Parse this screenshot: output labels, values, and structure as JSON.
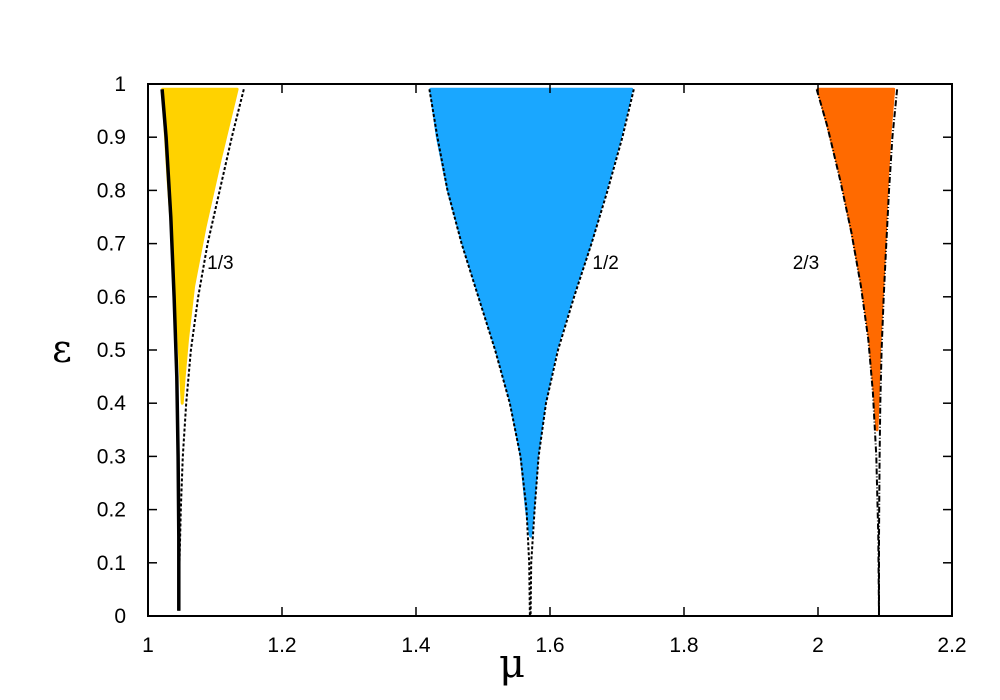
{
  "chart_data": {
    "type": "area",
    "title": "",
    "xlabel": "μ",
    "ylabel": "ε",
    "xlim": [
      1.0,
      2.2
    ],
    "ylim": [
      0,
      1
    ],
    "grid": false,
    "legend": "none",
    "x_ticks": [
      {
        "value": 1.0,
        "label": "1"
      },
      {
        "value": 1.2,
        "label": "1.2"
      },
      {
        "value": 1.4,
        "label": "1.4"
      },
      {
        "value": 1.6,
        "label": "1.6"
      },
      {
        "value": 1.8,
        "label": "1.8"
      },
      {
        "value": 2.0,
        "label": "2"
      },
      {
        "value": 2.2,
        "label": "2.2"
      }
    ],
    "y_ticks": [
      {
        "value": 0,
        "label": "0"
      },
      {
        "value": 0.1,
        "label": "0.1"
      },
      {
        "value": 0.2,
        "label": "0.2"
      },
      {
        "value": 0.3,
        "label": "0.3"
      },
      {
        "value": 0.4,
        "label": "0.4"
      },
      {
        "value": 0.5,
        "label": "0.5"
      },
      {
        "value": 0.6,
        "label": "0.6"
      },
      {
        "value": 0.7,
        "label": "0.7"
      },
      {
        "value": 0.8,
        "label": "0.8"
      },
      {
        "value": 0.9,
        "label": "0.9"
      },
      {
        "value": 1.0,
        "label": "1"
      }
    ],
    "regions": [
      {
        "name": "1/3",
        "color": "#FFD200",
        "label_pos": {
          "x": 1.108,
          "y": 0.665
        },
        "fill": [
          [
            1.022,
            0.99
          ],
          [
            1.133,
            0.99
          ],
          [
            1.108,
            0.86
          ],
          [
            1.085,
            0.73
          ],
          [
            1.068,
            0.62
          ],
          [
            1.059,
            0.52
          ],
          [
            1.054,
            0.45
          ],
          [
            1.051,
            0.4
          ],
          [
            1.046,
            0.52
          ],
          [
            1.039,
            0.66
          ],
          [
            1.03,
            0.82
          ]
        ],
        "boundaries": [
          {
            "style": "solid",
            "points": [
              [
                1.021,
                0.99
              ],
              [
                1.027,
                0.9
              ],
              [
                1.034,
                0.75
              ],
              [
                1.039,
                0.6
              ],
              [
                1.043,
                0.45
              ],
              [
                1.045,
                0.3
              ],
              [
                1.046,
                0.15
              ],
              [
                1.046,
                0.01
              ]
            ]
          },
          {
            "style": "dashed",
            "points": [
              [
                1.143,
                0.99
              ],
              [
                1.125,
                0.9
              ],
              [
                1.107,
                0.8
              ],
              [
                1.089,
                0.7
              ],
              [
                1.075,
                0.6
              ],
              [
                1.064,
                0.5
              ],
              [
                1.057,
                0.4
              ],
              [
                1.052,
                0.3
              ],
              [
                1.049,
                0.2
              ],
              [
                1.047,
                0.1
              ],
              [
                1.046,
                0.01
              ]
            ]
          }
        ]
      },
      {
        "name": "1/2",
        "color": "#1AA7FF",
        "label_pos": {
          "x": 1.683,
          "y": 0.665
        },
        "fill": [
          [
            1.422,
            0.99
          ],
          [
            1.722,
            0.99
          ],
          [
            1.705,
            0.9
          ],
          [
            1.683,
            0.8
          ],
          [
            1.66,
            0.7
          ],
          [
            1.633,
            0.6
          ],
          [
            1.609,
            0.5
          ],
          [
            1.592,
            0.4
          ],
          [
            1.581,
            0.3
          ],
          [
            1.575,
            0.2
          ],
          [
            1.571,
            0.15
          ],
          [
            1.565,
            0.2
          ],
          [
            1.557,
            0.3
          ],
          [
            1.542,
            0.4
          ],
          [
            1.52,
            0.5
          ],
          [
            1.495,
            0.6
          ],
          [
            1.47,
            0.7
          ],
          [
            1.448,
            0.8
          ],
          [
            1.432,
            0.9
          ]
        ],
        "boundaries": [
          {
            "style": "dashed",
            "points": [
              [
                1.42,
                0.99
              ],
              [
                1.432,
                0.9
              ],
              [
                1.447,
                0.8
              ],
              [
                1.468,
                0.7
              ],
              [
                1.493,
                0.6
              ],
              [
                1.518,
                0.5
              ],
              [
                1.54,
                0.4
              ],
              [
                1.556,
                0.3
              ],
              [
                1.565,
                0.2
              ],
              [
                1.569,
                0.1
              ],
              [
                1.57,
                0.0
              ]
            ]
          },
          {
            "style": "dashed",
            "points": [
              [
                1.725,
                0.99
              ],
              [
                1.708,
                0.9
              ],
              [
                1.686,
                0.8
              ],
              [
                1.662,
                0.7
              ],
              [
                1.636,
                0.6
              ],
              [
                1.612,
                0.5
              ],
              [
                1.594,
                0.4
              ],
              [
                1.583,
                0.3
              ],
              [
                1.577,
                0.2
              ],
              [
                1.572,
                0.1
              ],
              [
                1.571,
                0.0
              ]
            ]
          }
        ]
      },
      {
        "name": "2/3",
        "color": "#FF6A00",
        "label_pos": {
          "x": 1.982,
          "y": 0.665
        },
        "fill": [
          [
            2.0,
            0.99
          ],
          [
            2.113,
            0.99
          ],
          [
            2.107,
            0.9
          ],
          [
            2.103,
            0.8
          ],
          [
            2.1,
            0.7
          ],
          [
            2.096,
            0.6
          ],
          [
            2.092,
            0.5
          ],
          [
            2.09,
            0.42
          ],
          [
            2.088,
            0.35
          ],
          [
            2.084,
            0.42
          ],
          [
            2.077,
            0.52
          ],
          [
            2.066,
            0.62
          ],
          [
            2.051,
            0.72
          ],
          [
            2.035,
            0.82
          ],
          [
            2.015,
            0.92
          ]
        ],
        "boundaries": [
          {
            "style": "dashdot",
            "points": [
              [
                1.998,
                0.99
              ],
              [
                2.014,
                0.92
              ],
              [
                2.033,
                0.82
              ],
              [
                2.05,
                0.72
              ],
              [
                2.064,
                0.62
              ],
              [
                2.075,
                0.52
              ],
              [
                2.082,
                0.42
              ],
              [
                2.087,
                0.3
              ],
              [
                2.09,
                0.15
              ],
              [
                2.091,
                0.0
              ]
            ]
          },
          {
            "style": "dashdot",
            "points": [
              [
                2.118,
                0.99
              ],
              [
                2.111,
                0.9
              ],
              [
                2.106,
                0.8
              ],
              [
                2.102,
                0.7
              ],
              [
                2.098,
                0.6
              ],
              [
                2.095,
                0.5
              ],
              [
                2.093,
                0.4
              ],
              [
                2.092,
                0.3
              ],
              [
                2.091,
                0.15
              ],
              [
                2.091,
                0.0
              ]
            ]
          }
        ]
      }
    ]
  }
}
